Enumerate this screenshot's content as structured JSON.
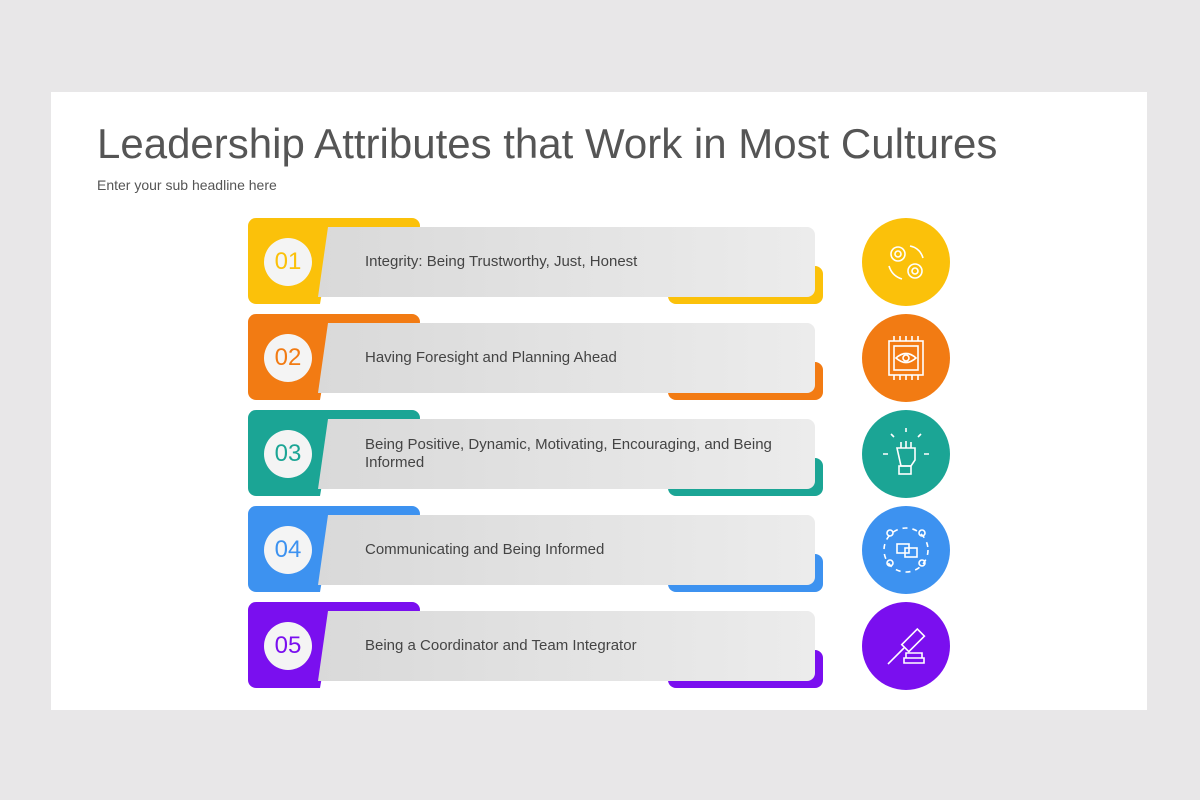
{
  "title": "Leadership Attributes that Work in Most Cultures",
  "subtitle": "Enter your sub headline here",
  "items": [
    {
      "number": "01",
      "text": "Integrity: Being Trustworthy, Just, Honest",
      "color": "#FBC10A",
      "icon": "gears-icon"
    },
    {
      "number": "02",
      "text": "Having Foresight and Planning Ahead",
      "color": "#F27B13",
      "icon": "eye-chip-icon"
    },
    {
      "number": "03",
      "text": "Being Positive, Dynamic, Motivating, Encouraging, and Being Informed",
      "color": "#1BA595",
      "icon": "raised-fist-icon"
    },
    {
      "number": "04",
      "text": "Communicating and Being Informed",
      "color": "#3D92F0",
      "icon": "team-chat-icon"
    },
    {
      "number": "05",
      "text": "Being a Coordinator and Team Integrator",
      "color": "#7A0FEF",
      "icon": "gavel-icon"
    }
  ]
}
